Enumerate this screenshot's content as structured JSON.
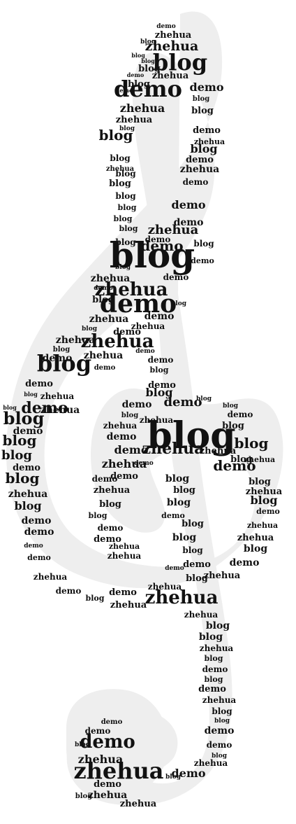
{
  "artwork": {
    "shape": "treble-clef",
    "words": [
      "zhehua",
      "blog",
      "demo"
    ]
  },
  "colors": {
    "background": "#ffffff",
    "shape_fill": "#eeeeee",
    "text": "#111111"
  }
}
